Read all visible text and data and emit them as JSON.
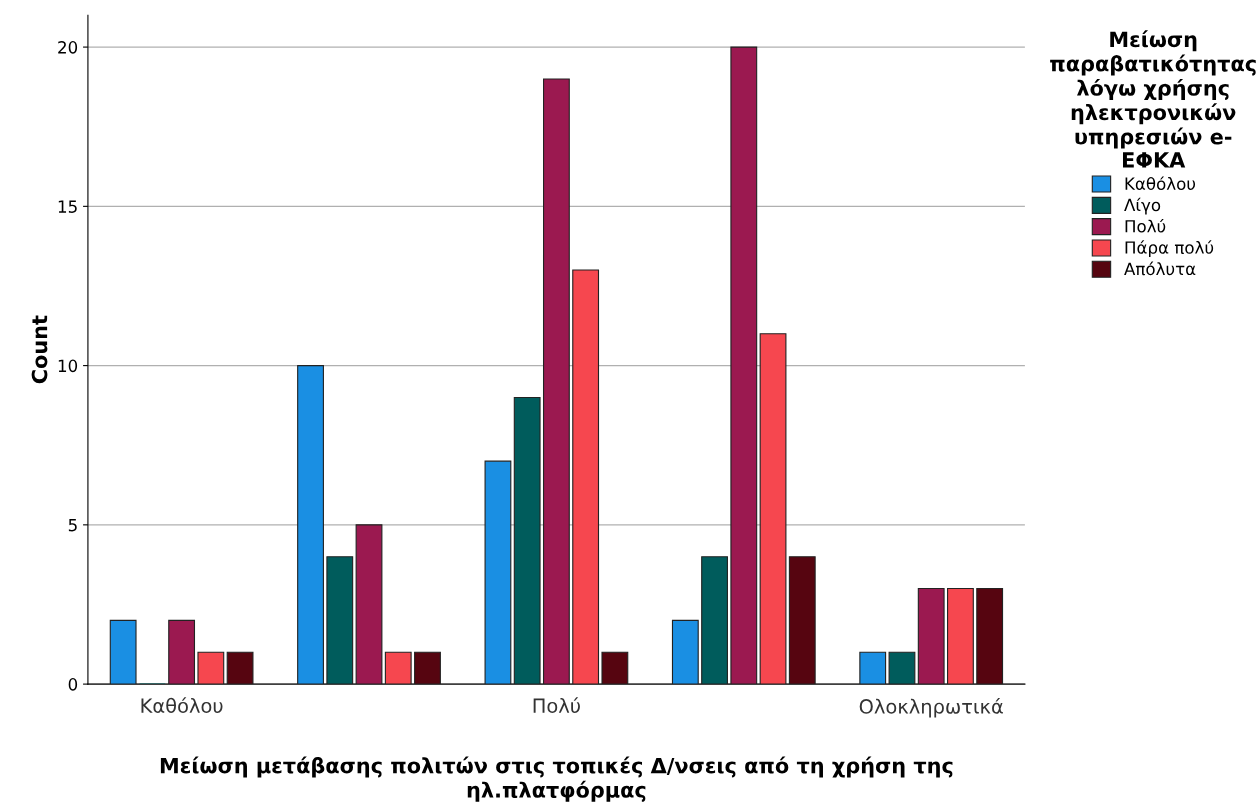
{
  "chart_data": {
    "type": "bar",
    "xlabel": "Μείωση μετάβασης πολιτών στις τοπικές Δ/νσεις από τη χρήση της\nηλ.πλατφόρμας",
    "ylabel": "Count",
    "legend_title": "Μείωση\nπαραβατικότητας\nλόγω χρήσης\nηλεκτρονικών\nυπηρεσιών e-\nΕΦΚΑ",
    "categories": [
      "Καθόλου",
      null,
      "Πολύ",
      null,
      "Ολοκληρωτικά"
    ],
    "series": [
      {
        "name": "Καθόλου",
        "color": "#1a8fe3",
        "values": [
          2,
          10,
          7,
          2,
          1
        ]
      },
      {
        "name": "Λίγο",
        "color": "#005c5c",
        "values": [
          0,
          4,
          9,
          4,
          1
        ]
      },
      {
        "name": "Πολύ",
        "color": "#9b1950",
        "values": [
          2,
          5,
          19,
          20,
          3
        ]
      },
      {
        "name": "Πάρα πολύ",
        "color": "#f6474f",
        "values": [
          1,
          1,
          13,
          11,
          3
        ]
      },
      {
        "name": "Απόλυτα",
        "color": "#560510",
        "values": [
          1,
          1,
          1,
          4,
          3
        ]
      }
    ],
    "ylim": [
      0,
      21
    ],
    "yticks": [
      0,
      5,
      10,
      15,
      20
    ],
    "grid": "y",
    "legend": "top right"
  }
}
